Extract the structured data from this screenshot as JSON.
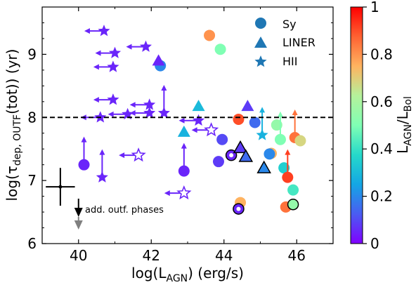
{
  "chart_data": {
    "type": "scatter",
    "xlabel_main": "log(L",
    "xlabel_sub": "AGN",
    "xlabel_tail": ") (erg/s)",
    "ylabel_main": "log(τ",
    "ylabel_sub": "dep, OUTF",
    "ylabel_tail": "(tot)) (yr)",
    "xlim": [
      39,
      47
    ],
    "ylim": [
      6,
      9.75
    ],
    "x_ticks": [
      40,
      42,
      44,
      46
    ],
    "x_tick_labels": [
      "40",
      "42",
      "44",
      "46"
    ],
    "y_ticks": [
      6,
      7,
      8,
      9
    ],
    "y_tick_labels": [
      "6",
      "7",
      "8",
      "9"
    ],
    "reference_line_y": 8,
    "legend": {
      "placement": "top-right",
      "entries": [
        {
          "marker": "circle",
          "label": "Sy"
        },
        {
          "marker": "triangle",
          "label": "LINER"
        },
        {
          "marker": "star",
          "label": "HII"
        }
      ]
    },
    "colorbar": {
      "title_main": "L",
      "title_sub1": "AGN",
      "title_mid": "/L",
      "title_sub2": "Bol",
      "range": [
        0,
        1
      ],
      "ticks": [
        0,
        0.2,
        0.4,
        0.6,
        0.8,
        1.0
      ],
      "tick_labels": [
        "0",
        "0.2",
        "0.4",
        "0.6",
        "0.8",
        "1"
      ]
    },
    "annotation": "add. outf. phases",
    "typical_error": {
      "x": 39.5,
      "y": 6.9,
      "xerr": 0.4,
      "yerr": 0.3
    },
    "points": [
      {
        "type": "star",
        "x": 40.7,
        "y": 9.37,
        "c": 0.05,
        "arrow": "left"
      },
      {
        "type": "star",
        "x": 41.0,
        "y": 9.02,
        "c": 0.05,
        "arrow": "left"
      },
      {
        "type": "star",
        "x": 40.95,
        "y": 8.8,
        "c": 0.05,
        "arrow": "left"
      },
      {
        "type": "star",
        "x": 41.85,
        "y": 9.12,
        "c": 0.05,
        "arrow": "left"
      },
      {
        "type": "star",
        "x": 40.95,
        "y": 8.28,
        "c": 0.05,
        "arrow": "left"
      },
      {
        "type": "star",
        "x": 41.95,
        "y": 8.2,
        "c": 0.05,
        "arrow": "left"
      },
      {
        "type": "star",
        "x": 40.6,
        "y": 8.0,
        "c": 0.05,
        "arrow": "left"
      },
      {
        "type": "star",
        "x": 41.35,
        "y": 8.05,
        "c": 0.05,
        "arrow": "left"
      },
      {
        "type": "star",
        "x": 41.95,
        "y": 8.07,
        "c": 0.05,
        "arrow": "left"
      },
      {
        "type": "star",
        "x": 42.35,
        "y": 8.07,
        "c": 0.05,
        "arrow": "up"
      },
      {
        "type": "star",
        "x": 43.3,
        "y": 7.95,
        "c": 0.05,
        "arrow": "left"
      },
      {
        "type": "star",
        "x": 40.65,
        "y": 7.05,
        "c": 0.05,
        "arrow": "up"
      },
      {
        "type": "star",
        "x": 41.65,
        "y": 7.4,
        "c": 0.05,
        "arrow": "left",
        "hollow": true
      },
      {
        "type": "star",
        "x": 43.65,
        "y": 7.8,
        "c": 0.05,
        "arrow": "left",
        "hollow": true
      },
      {
        "type": "star",
        "x": 42.9,
        "y": 6.8,
        "c": 0.05,
        "arrow": "left",
        "hollow": true
      },
      {
        "type": "star",
        "x": 45.05,
        "y": 7.72,
        "c": 0.28,
        "arrow": "up"
      },
      {
        "type": "circle",
        "x": 40.15,
        "y": 7.25,
        "c": 0.05,
        "arrow": "up"
      },
      {
        "type": "circle",
        "x": 42.9,
        "y": 7.15,
        "c": 0.05,
        "arrow": "up"
      },
      {
        "type": "circle",
        "x": 42.25,
        "y": 8.82,
        "c": 0.2
      },
      {
        "type": "circle",
        "x": 43.6,
        "y": 9.3,
        "c": 0.8
      },
      {
        "type": "circle",
        "x": 43.9,
        "y": 9.08,
        "c": 0.5
      },
      {
        "type": "circle",
        "x": 43.95,
        "y": 7.65,
        "c": 0.1
      },
      {
        "type": "circle",
        "x": 43.85,
        "y": 7.3,
        "c": 0.08
      },
      {
        "type": "circle",
        "x": 44.2,
        "y": 7.4,
        "c": 0.05,
        "ring": true
      },
      {
        "type": "circle",
        "x": 44.4,
        "y": 7.97,
        "c": 0.9
      },
      {
        "type": "circle",
        "x": 44.45,
        "y": 6.65,
        "c": 0.75
      },
      {
        "type": "circle",
        "x": 44.4,
        "y": 6.55,
        "c": 0.05,
        "ring": true
      },
      {
        "type": "circle",
        "x": 44.85,
        "y": 7.92,
        "c": 0.15
      },
      {
        "type": "circle",
        "x": 45.3,
        "y": 7.43,
        "c": 0.75
      },
      {
        "type": "circle",
        "x": 45.25,
        "y": 7.42,
        "c": 0.2
      },
      {
        "type": "circle",
        "x": 45.45,
        "y": 7.88,
        "c": 0.55
      },
      {
        "type": "circle",
        "x": 45.55,
        "y": 7.65,
        "c": 0.5,
        "arrow": "up"
      },
      {
        "type": "circle",
        "x": 45.65,
        "y": 7.2,
        "c": 0.35
      },
      {
        "type": "circle",
        "x": 45.75,
        "y": 7.05,
        "c": 0.92,
        "arrow": "up"
      },
      {
        "type": "circle",
        "x": 45.9,
        "y": 6.85,
        "c": 0.42
      },
      {
        "type": "circle",
        "x": 45.7,
        "y": 6.58,
        "c": 0.85
      },
      {
        "type": "circle",
        "x": 45.9,
        "y": 6.62,
        "c": 0.55,
        "ring": true
      },
      {
        "type": "circle",
        "x": 45.95,
        "y": 7.68,
        "c": 0.85,
        "arrow": "up"
      },
      {
        "type": "circle",
        "x": 46.1,
        "y": 7.63,
        "c": 0.68
      },
      {
        "type": "triangle",
        "x": 42.2,
        "y": 8.9,
        "c": 0.05
      },
      {
        "type": "triangle",
        "x": 43.3,
        "y": 8.18,
        "c": 0.3
      },
      {
        "type": "triangle",
        "x": 42.9,
        "y": 7.77,
        "c": 0.28
      },
      {
        "type": "triangle",
        "x": 44.65,
        "y": 8.18,
        "c": 0.08
      },
      {
        "type": "triangle",
        "x": 44.45,
        "y": 7.52,
        "c": 0.08,
        "ring": true
      },
      {
        "type": "triangle",
        "x": 44.6,
        "y": 7.38,
        "c": 0.15,
        "ring": true
      },
      {
        "type": "triangle",
        "x": 45.1,
        "y": 7.2,
        "c": 0.2,
        "ring": true
      }
    ]
  }
}
